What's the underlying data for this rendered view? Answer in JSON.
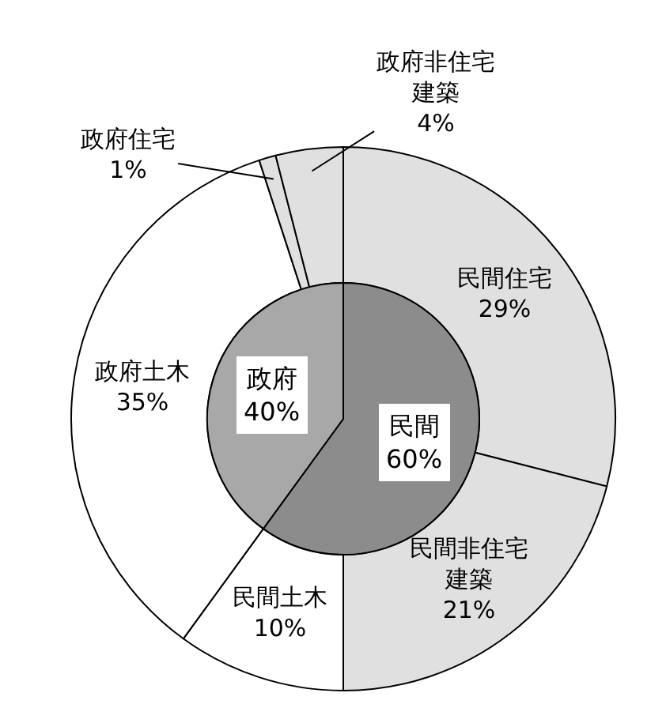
{
  "chart_data": [
    {
      "type": "donut",
      "categories": [
        "民間住宅",
        "民間非住宅建築",
        "民間土木",
        "政府土木",
        "政府住宅",
        "政府非住宅建築"
      ],
      "values": [
        29,
        21,
        10,
        35,
        1,
        4
      ],
      "value_labels": [
        "29%",
        "21%",
        "10%",
        "35%",
        "1%",
        "4%"
      ],
      "colors": [
        "#e0e0e0",
        "#e0e0e0",
        "#ffffff",
        "#ffffff",
        "#e0e0e0",
        "#e0e0e0"
      ]
    },
    {
      "type": "pie",
      "categories": [
        "民間",
        "政府"
      ],
      "values": [
        60,
        40
      ],
      "value_labels": [
        "60%",
        "40%"
      ],
      "colors": [
        "#8c8c8c",
        "#a8a8a8"
      ]
    }
  ]
}
